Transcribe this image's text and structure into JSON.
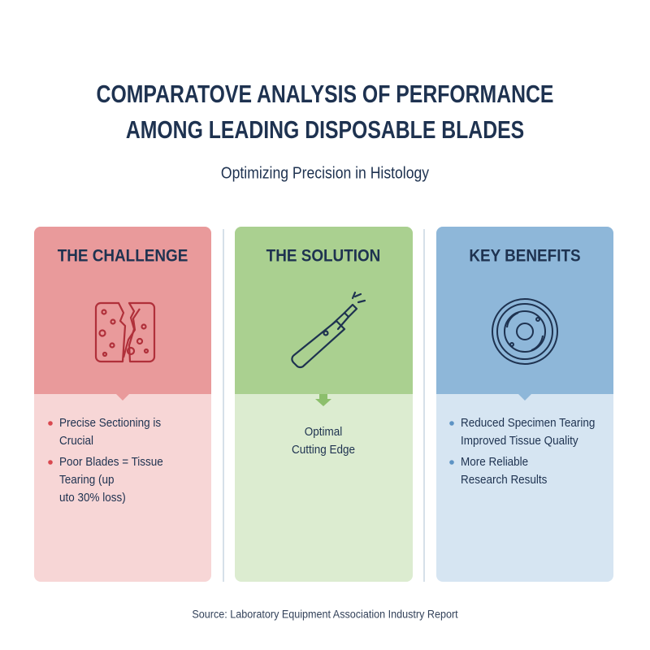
{
  "header": {
    "title": [
      "COMPARATOVE ANALYSIS OF PERFORMANCE",
      "AMONG LEADING DISPOSABLE BLADES"
    ],
    "subtitle": "Optimizing Precision in Histology"
  },
  "cards": [
    {
      "heading": "THE CHALLENGE",
      "items": [
        [
          "Precise Sectioning is",
          "Crucial"
        ],
        [
          "Poor Blades = Tissue",
          "Tearing (up",
          "uto 30% loss)"
        ]
      ]
    },
    {
      "heading": "THE SOLUTION",
      "text": [
        "Optimal",
        "Cutting Edge"
      ]
    },
    {
      "heading": "KEY BENEFITS",
      "items": [
        [
          "Reduced Specimen Tearing",
          "Improved Tissue Quality"
        ],
        [
          "More Reliable",
          "Research Results"
        ]
      ]
    }
  ],
  "footer": {
    "source": "Source: Laboratory Equipment Association Industry Report"
  }
}
